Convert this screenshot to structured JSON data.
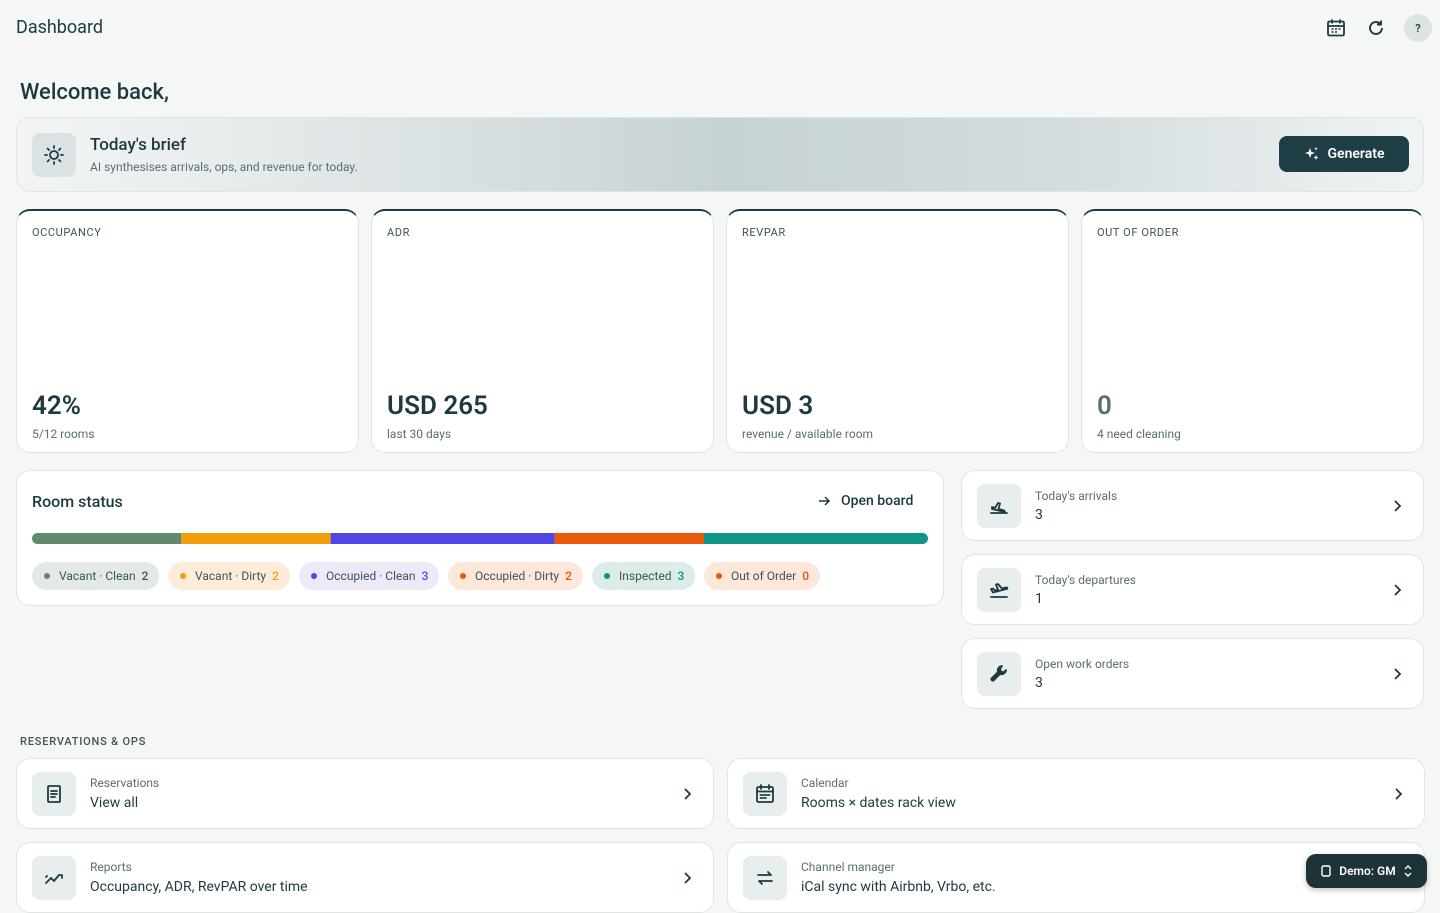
{
  "header": {
    "title": "Dashboard",
    "help": "?"
  },
  "welcome": "Welcome back,",
  "brief": {
    "title": "Today's brief",
    "subtitle": "AI synthesises arrivals, ops, and revenue for today.",
    "button": "Generate"
  },
  "kpis": [
    {
      "label": "OCCUPANCY",
      "value": "42%",
      "sub": "5/12 rooms"
    },
    {
      "label": "ADR",
      "value": "USD 265",
      "sub": "last 30 days"
    },
    {
      "label": "REVPAR",
      "value": "USD 3",
      "sub": "revenue / available room"
    },
    {
      "label": "OUT OF ORDER",
      "value": "0",
      "sub": "4 need cleaning"
    }
  ],
  "room_status": {
    "title": "Room status",
    "link": "Open board",
    "segments": [
      {
        "name": "Vacant · Clean",
        "count": 2,
        "color": "#5f8a6c",
        "chip_bg": "#e3e9e7"
      },
      {
        "name": "Vacant · Dirty",
        "count": 2,
        "color": "#f29e0c",
        "chip_bg": "#fdecd9"
      },
      {
        "name": "Occupied · Clean",
        "count": 3,
        "color": "#4f46e5",
        "chip_bg": "#eceaf8"
      },
      {
        "name": "Occupied · Dirty",
        "count": 2,
        "color": "#ea580c",
        "chip_bg": "#fde6da"
      },
      {
        "name": "Inspected",
        "count": 3,
        "color": "#0f9488",
        "chip_bg": "#dcede9"
      },
      {
        "name": "Out of Order",
        "count": 0,
        "color": "#ea580c",
        "chip_bg": "#fde6da"
      }
    ]
  },
  "quick": [
    {
      "label": "Today's arrivals",
      "value": 3
    },
    {
      "label": "Today's departures",
      "value": 1
    },
    {
      "label": "Open work orders",
      "value": 3
    }
  ],
  "section": "RESERVATIONS & OPS",
  "links": [
    {
      "label": "Reservations",
      "text": "View all"
    },
    {
      "label": "Calendar",
      "text": "Rooms × dates rack view"
    },
    {
      "label": "Reports",
      "text": "Occupancy, ADR, RevPAR over time"
    },
    {
      "label": "Channel manager",
      "text": "iCal sync with Airbnb, Vrbo, etc."
    }
  ],
  "demo": "Demo: GM"
}
